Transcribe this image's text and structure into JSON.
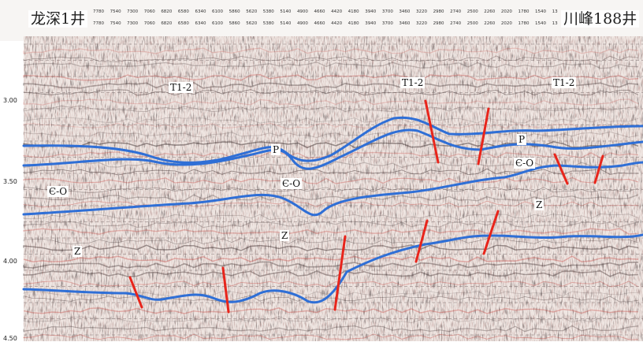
{
  "wells": {
    "left": "龙深1井",
    "right": "川峰188井"
  },
  "cdp_labels": [
    "7780",
    "7540",
    "7300",
    "7060",
    "6820",
    "6580",
    "6340",
    "6100",
    "5860",
    "5620",
    "5380",
    "5140",
    "4900",
    "4660",
    "4420",
    "4180",
    "3940",
    "3700",
    "3460",
    "3220",
    "2980",
    "2740",
    "2500",
    "2260",
    "2020",
    "1780",
    "1540",
    "13"
  ],
  "time_axis": [
    "3.00",
    "3.50",
    "4.00",
    "4.50"
  ],
  "units": {
    "t12": "T1-2",
    "p": "P",
    "e_o": "Є-O",
    "z": "Z"
  },
  "colors": {
    "horizon": "#2f6fd6",
    "fault": "#e8251b",
    "trace_dark": "#3a2a2a",
    "trace_red": "#c8453f"
  }
}
